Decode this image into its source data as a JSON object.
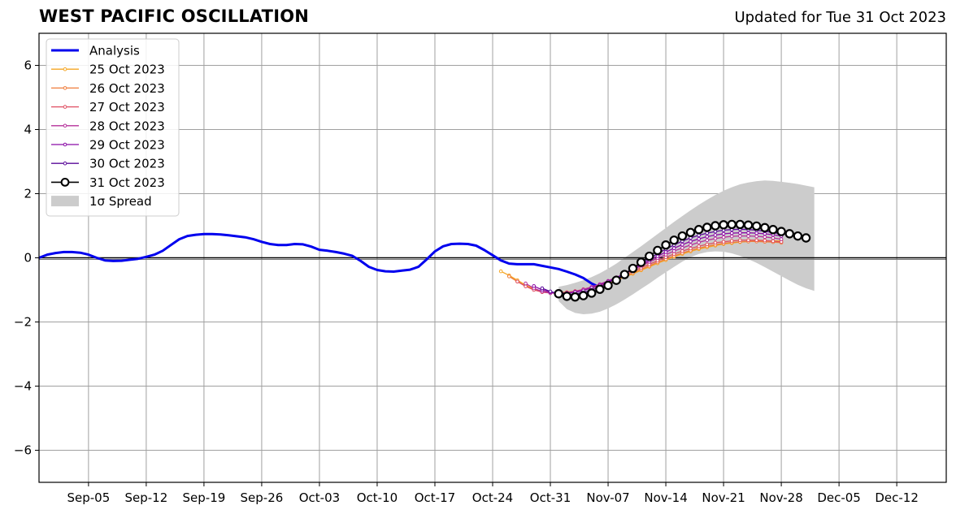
{
  "header": {
    "title": "WEST PACIFIC OSCILLATION",
    "updated": "Updated for Tue 31 Oct 2023"
  },
  "chart_data": {
    "type": "line",
    "title": "WEST PACIFIC OSCILLATION",
    "subtitle": "Updated for Tue 31 Oct 2023",
    "xlabel": "",
    "ylabel": "",
    "x_axis": {
      "type": "date",
      "range": [
        "2023-08-30",
        "2023-12-18"
      ],
      "ticks": [
        "2023-09-05",
        "2023-09-12",
        "2023-09-19",
        "2023-09-26",
        "2023-10-03",
        "2023-10-10",
        "2023-10-17",
        "2023-10-24",
        "2023-10-31",
        "2023-11-07",
        "2023-11-14",
        "2023-11-21",
        "2023-11-28",
        "2023-12-05",
        "2023-12-12"
      ],
      "tick_labels": [
        "Sep-05",
        "Sep-12",
        "Sep-19",
        "Sep-26",
        "Oct-03",
        "Oct-10",
        "Oct-17",
        "Oct-24",
        "Oct-31",
        "Nov-07",
        "Nov-14",
        "Nov-21",
        "Nov-28",
        "Dec-05",
        "Dec-12"
      ]
    },
    "y_axis": {
      "range": [
        -7,
        7
      ],
      "ticks": [
        -6,
        -4,
        -2,
        0,
        2,
        4,
        6
      ],
      "tick_labels": [
        "−6",
        "−4",
        "−2",
        "0",
        "2",
        "4",
        "6"
      ]
    },
    "grid": true,
    "zero_line": true,
    "legend_position": "upper-left",
    "analysis": {
      "name": "Analysis",
      "color": "#0000ee",
      "start": "2023-08-30",
      "values": [
        0.0,
        0.1,
        0.15,
        0.18,
        0.18,
        0.16,
        0.1,
        0.0,
        -0.08,
        -0.1,
        -0.09,
        -0.06,
        -0.03,
        0.03,
        0.1,
        0.22,
        0.4,
        0.58,
        0.68,
        0.72,
        0.74,
        0.74,
        0.73,
        0.7,
        0.67,
        0.64,
        0.58,
        0.5,
        0.43,
        0.4,
        0.4,
        0.43,
        0.42,
        0.35,
        0.25,
        0.22,
        0.18,
        0.13,
        0.06,
        -0.1,
        -0.28,
        -0.38,
        -0.42,
        -0.43,
        -0.4,
        -0.37,
        -0.28,
        -0.05,
        0.2,
        0.36,
        0.43,
        0.44,
        0.43,
        0.38,
        0.24,
        0.08,
        -0.08,
        -0.18,
        -0.2,
        -0.2,
        -0.2,
        -0.25,
        -0.3,
        -0.35,
        -0.43,
        -0.52,
        -0.63,
        -0.8,
        -0.92
      ]
    },
    "forecasts": [
      {
        "name": "25 Oct 2023",
        "color": "#f5a623",
        "start": "2023-10-25",
        "values": [
          -0.42,
          -0.55,
          -0.7,
          -0.85,
          -0.97,
          -1.05,
          -1.08,
          -1.08,
          -1.07,
          -1.04,
          -1.0,
          -0.94,
          -0.87,
          -0.79,
          -0.7,
          -0.6,
          -0.5,
          -0.39,
          -0.28,
          -0.17,
          -0.07,
          0.03,
          0.12,
          0.2,
          0.27,
          0.33,
          0.38,
          0.43,
          0.46,
          0.49,
          0.51,
          0.52,
          0.53,
          0.53,
          0.53
        ]
      },
      {
        "name": "26 Oct 2023",
        "color": "#ef7c3b",
        "start": "2023-10-26",
        "values": [
          -0.58,
          -0.74,
          -0.88,
          -0.99,
          -1.06,
          -1.09,
          -1.1,
          -1.08,
          -1.05,
          -1.0,
          -0.94,
          -0.86,
          -0.77,
          -0.68,
          -0.58,
          -0.47,
          -0.36,
          -0.25,
          -0.14,
          -0.04,
          0.06,
          0.15,
          0.23,
          0.3,
          0.36,
          0.41,
          0.45,
          0.48,
          0.5,
          0.51,
          0.51,
          0.5,
          0.49,
          0.47
        ]
      },
      {
        "name": "27 Oct 2023",
        "color": "#df4f62",
        "start": "2023-10-27",
        "values": [
          -0.74,
          -0.89,
          -1.0,
          -1.07,
          -1.1,
          -1.1,
          -1.08,
          -1.04,
          -0.98,
          -0.91,
          -0.83,
          -0.74,
          -0.64,
          -0.53,
          -0.42,
          -0.31,
          -0.2,
          -0.09,
          0.02,
          0.12,
          0.21,
          0.29,
          0.36,
          0.42,
          0.47,
          0.5,
          0.53,
          0.55,
          0.55,
          0.55,
          0.54,
          0.52,
          0.5
        ]
      },
      {
        "name": "28 Oct 2023",
        "color": "#b5309a",
        "start": "2023-10-28",
        "values": [
          -0.8,
          -0.95,
          -1.05,
          -1.1,
          -1.11,
          -1.09,
          -1.05,
          -0.99,
          -0.91,
          -0.82,
          -0.72,
          -0.61,
          -0.49,
          -0.37,
          -0.25,
          -0.13,
          -0.01,
          0.1,
          0.21,
          0.31,
          0.4,
          0.48,
          0.55,
          0.6,
          0.64,
          0.67,
          0.68,
          0.68,
          0.67,
          0.65,
          0.62,
          0.58
        ]
      },
      {
        "name": "29 Oct 2023",
        "color": "#8a0aa6",
        "start": "2023-10-29",
        "values": [
          -0.88,
          -1.0,
          -1.07,
          -1.1,
          -1.1,
          -1.07,
          -1.02,
          -0.94,
          -0.85,
          -0.74,
          -0.62,
          -0.49,
          -0.36,
          -0.22,
          -0.08,
          0.05,
          0.18,
          0.3,
          0.41,
          0.51,
          0.59,
          0.66,
          0.71,
          0.75,
          0.77,
          0.78,
          0.78,
          0.77,
          0.75,
          0.72,
          0.68
        ]
      },
      {
        "name": "30 Oct 2023",
        "color": "#5a0a99",
        "start": "2023-10-30",
        "values": [
          -0.95,
          -1.05,
          -1.12,
          -1.14,
          -1.13,
          -1.08,
          -1.0,
          -0.9,
          -0.78,
          -0.64,
          -0.49,
          -0.33,
          -0.17,
          -0.02,
          0.13,
          0.27,
          0.4,
          0.52,
          0.62,
          0.7,
          0.77,
          0.82,
          0.86,
          0.88,
          0.89,
          0.88,
          0.86,
          0.83,
          0.79,
          0.74
        ]
      },
      {
        "name": "31 Oct 2023",
        "color": "#000000",
        "start": "2023-11-01",
        "values": [
          -1.12,
          -1.2,
          -1.22,
          -1.18,
          -1.1,
          -0.98,
          -0.86,
          -0.7,
          -0.52,
          -0.33,
          -0.14,
          0.05,
          0.23,
          0.4,
          0.55,
          0.68,
          0.79,
          0.88,
          0.95,
          1.0,
          1.03,
          1.04,
          1.04,
          1.02,
          0.99,
          0.94,
          0.88,
          0.82,
          0.75,
          0.68,
          0.62
        ]
      }
    ],
    "spread": {
      "name": "1σ Spread",
      "color": "#cccccc",
      "start": "2023-11-01",
      "upper": [
        -0.9,
        -0.85,
        -0.78,
        -0.7,
        -0.6,
        -0.48,
        -0.34,
        -0.18,
        0.0,
        0.18,
        0.36,
        0.55,
        0.74,
        0.93,
        1.12,
        1.3,
        1.48,
        1.65,
        1.81,
        1.96,
        2.09,
        2.2,
        2.29,
        2.35,
        2.39,
        2.41,
        2.4,
        2.37,
        2.34,
        2.3,
        2.25,
        2.2
      ],
      "lower": [
        -1.35,
        -1.6,
        -1.72,
        -1.76,
        -1.74,
        -1.68,
        -1.58,
        -1.45,
        -1.3,
        -1.14,
        -0.97,
        -0.8,
        -0.62,
        -0.45,
        -0.28,
        -0.12,
        0.02,
        0.12,
        0.18,
        0.2,
        0.19,
        0.14,
        0.06,
        -0.04,
        -0.16,
        -0.29,
        -0.43,
        -0.57,
        -0.71,
        -0.84,
        -0.95,
        -1.03
      ]
    }
  }
}
